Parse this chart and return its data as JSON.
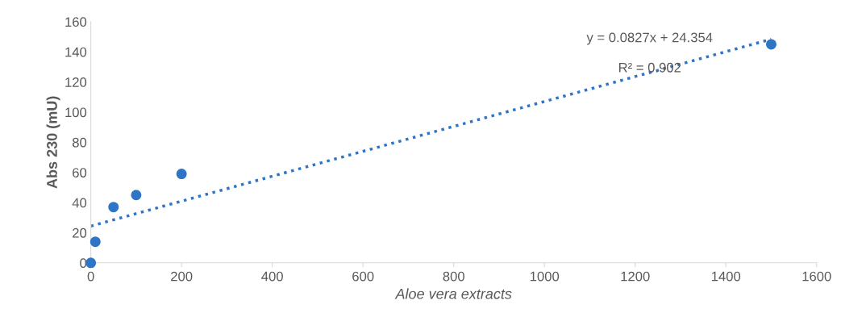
{
  "chart_data": {
    "type": "scatter",
    "xlabel": "Aloe vera extracts",
    "ylabel": "Abs 230 (mU)",
    "series": [
      {
        "color": "#2e75c6",
        "x": [
          0,
          10,
          50,
          100,
          200,
          1500
        ],
        "values": [
          0,
          14,
          37,
          45,
          59,
          145
        ],
        "marker": "circle"
      },
      {
        "type": "line",
        "color": "#2e75c6",
        "x": [
          0,
          1500
        ],
        "values": [
          24.4,
          148.4
        ],
        "line_style": "dotted",
        "marker": "none"
      }
    ],
    "annotations": [
      "y = 0.0827x + 24.354",
      "R² = 0.902"
    ],
    "xlim": [
      0,
      1600
    ],
    "xticks": [
      0,
      200,
      400,
      600,
      800,
      1000,
      1200,
      1400,
      1600
    ],
    "ylim": [
      0,
      160
    ],
    "yticks": [
      0,
      20,
      40,
      60,
      80,
      100,
      120,
      140,
      160
    ],
    "grid": false,
    "legend": false
  }
}
